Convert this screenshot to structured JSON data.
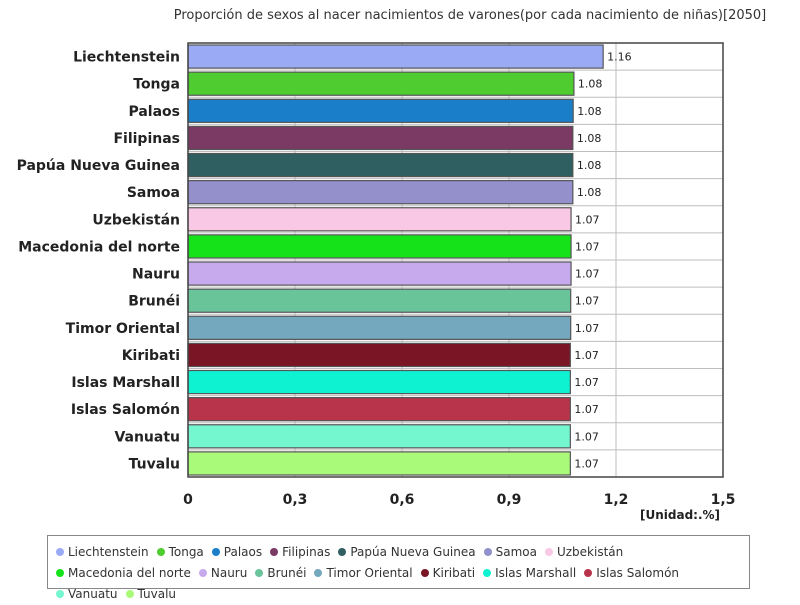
{
  "chart_data": {
    "type": "bar",
    "orientation": "horizontal",
    "title": "Proporción de sexos al nacer nacimientos de varones(por cada nacimiento de niñas)[2050]",
    "unit_label": "[Unidad:.%]",
    "categories": [
      "Liechtenstein",
      "Tonga",
      "Palaos",
      "Filipinas",
      "Papúa Nueva Guinea",
      "Samoa",
      "Uzbekistán",
      "Macedonia del norte",
      "Nauru",
      "Brunéi",
      "Timor Oriental",
      "Kiribati",
      "Islas Marshall",
      "Islas Salomón",
      "Vanuatu",
      "Tuvalu"
    ],
    "values": [
      1.164,
      1.082,
      1.08,
      1.079,
      1.079,
      1.079,
      1.074,
      1.074,
      1.074,
      1.073,
      1.073,
      1.072,
      1.072,
      1.072,
      1.072,
      1.072
    ],
    "value_labels": [
      "1.16",
      "1.08",
      "1.08",
      "1.08",
      "1.08",
      "1.08",
      "1.07",
      "1.07",
      "1.07",
      "1.07",
      "1.07",
      "1.07",
      "1.07",
      "1.07",
      "1.07",
      "1.07"
    ],
    "colors": [
      "#9aaaf4",
      "#4fcc2f",
      "#1a7fc8",
      "#7a3a64",
      "#2f5f60",
      "#9490cc",
      "#f8c8e4",
      "#16e21a",
      "#c7aaee",
      "#6ac49a",
      "#74a8bf",
      "#7a1526",
      "#0ef2d2",
      "#b8344a",
      "#74f6cf",
      "#a8fa78"
    ],
    "xlim": [
      0,
      1.5
    ],
    "xticks": [
      0,
      0.3,
      0.6,
      0.9,
      1.2,
      1.5
    ],
    "xtick_labels": [
      "0",
      "0,3",
      "0,6",
      "0,9",
      "1,2",
      "1,5"
    ],
    "grid": true,
    "legend_position": "bottom"
  }
}
